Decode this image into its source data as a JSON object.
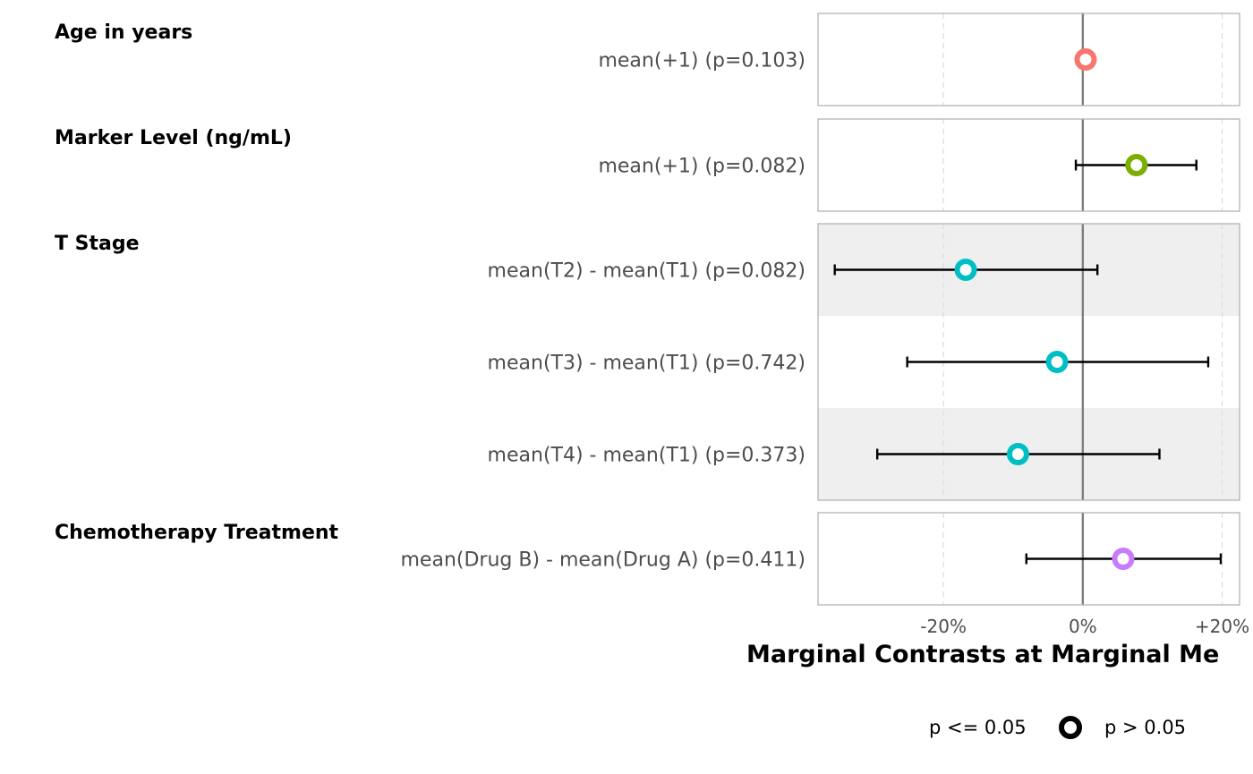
{
  "chart_data": {
    "type": "forest",
    "xlabel": "Marginal Contrasts at Marginal Me",
    "x_ticks": [
      {
        "value": -0.2,
        "label": "-20%"
      },
      {
        "value": 0.0,
        "label": "0%"
      },
      {
        "value": 0.2,
        "label": "+20%"
      }
    ],
    "xlim": [
      -0.38,
      0.225
    ],
    "reference_line": 0,
    "grid": "vertical-dashed",
    "groups": [
      {
        "title": "Age in years",
        "color": "#F8766D",
        "rows": [
          {
            "label": "mean(+1) (p=0.103)",
            "estimate": 0.004,
            "low": 0.004,
            "high": 0.004,
            "p": 0.103
          }
        ]
      },
      {
        "title": "Marker Level (ng/mL)",
        "color": "#7CAE00",
        "rows": [
          {
            "label": "mean(+1) (p=0.082)",
            "estimate": 0.077,
            "low": -0.01,
            "high": 0.163,
            "p": 0.082
          }
        ]
      },
      {
        "title": "T Stage",
        "color": "#00BFC4",
        "rows": [
          {
            "label": "mean(T2) - mean(T1) (p=0.082)",
            "estimate": -0.168,
            "low": -0.356,
            "high": 0.021,
            "p": 0.082
          },
          {
            "label": "mean(T3) - mean(T1) (p=0.742)",
            "estimate": -0.037,
            "low": -0.252,
            "high": 0.18,
            "p": 0.742
          },
          {
            "label": "mean(T4) - mean(T1) (p=0.373)",
            "estimate": -0.093,
            "low": -0.295,
            "high": 0.11,
            "p": 0.373
          }
        ]
      },
      {
        "title": "Chemotherapy Treatment",
        "color": "#C77CFF",
        "rows": [
          {
            "label": "mean(Drug B) - mean(Drug A) (p=0.411)",
            "estimate": 0.058,
            "low": -0.081,
            "high": 0.198,
            "p": 0.411
          }
        ]
      }
    ],
    "legend": {
      "placement": "bottom",
      "items": [
        {
          "label": "p <= 0.05",
          "marker": "filled-circle"
        },
        {
          "label": "p > 0.05",
          "marker": "hollow-circle"
        }
      ]
    }
  }
}
